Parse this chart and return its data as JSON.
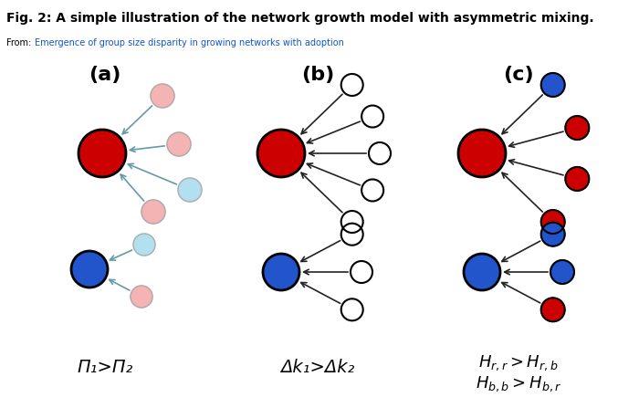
{
  "title": "Fig. 2: A simple illustration of the network growth model with asymmetric mixing.",
  "subtitle_prefix": "From: ",
  "subtitle_link": "Emergence of group size disparity in growing networks with adoption",
  "colors": {
    "red": "#CC0000",
    "red_light": "#F4ACAC",
    "blue": "#2255CC",
    "blue_light": "#AADDEE",
    "white_node": "#FFFFFF",
    "arrow_blk": "#222222",
    "arrow_gray": "#6699AA"
  }
}
